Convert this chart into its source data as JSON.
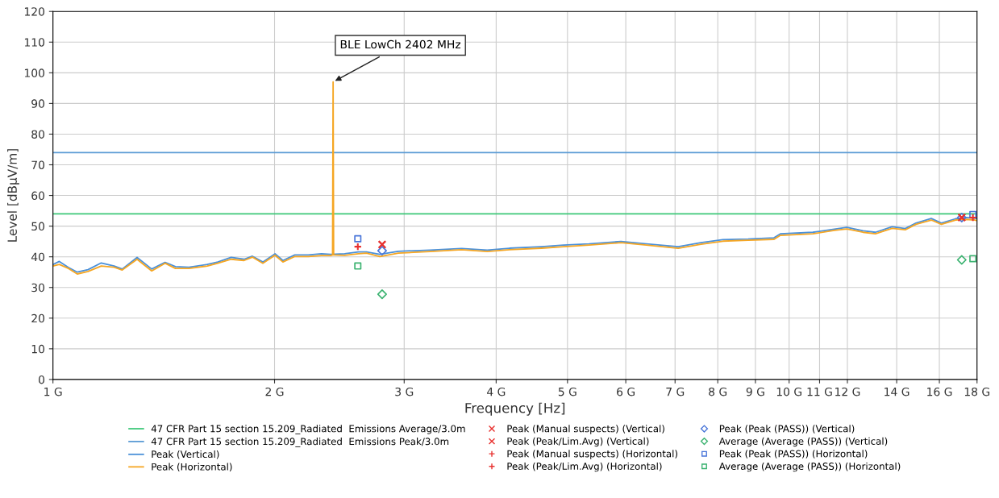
{
  "chart_data": {
    "type": "line",
    "xlabel": "Frequency [Hz]",
    "ylabel": "Level [dBµV/m]",
    "log": "x",
    "grid": true,
    "legend": "bottom",
    "xlim": [
      1,
      18
    ],
    "ylim": [
      0,
      120
    ],
    "xticks": [
      {
        "value": 1,
        "label": "1 G"
      },
      {
        "value": 2,
        "label": "2 G"
      },
      {
        "value": 3,
        "label": "3 G"
      },
      {
        "value": 4,
        "label": "4 G"
      },
      {
        "value": 5,
        "label": "5 G"
      },
      {
        "value": 6,
        "label": "6 G"
      },
      {
        "value": 7,
        "label": "7 G"
      },
      {
        "value": 8,
        "label": "8 G"
      },
      {
        "value": 9,
        "label": "9 G"
      },
      {
        "value": 10,
        "label": "10 G"
      },
      {
        "value": 11,
        "label": "11 G"
      },
      {
        "value": 12,
        "label": "12 G"
      },
      {
        "value": 14,
        "label": "14 G"
      },
      {
        "value": 16,
        "label": "16 G"
      },
      {
        "value": 18,
        "label": "18 G"
      }
    ],
    "yticks": [
      0,
      10,
      20,
      30,
      40,
      50,
      60,
      70,
      80,
      90,
      100,
      110,
      120
    ],
    "annotations": [
      {
        "text": "BLE LowCh 2402 MHz",
        "x": 2.402,
        "y": 97
      }
    ],
    "series": [
      {
        "name": "47 CFR Part 15 section 15.209_Radiated  Emissions Average/3.0m",
        "color": "#3cc878",
        "x": [
          1,
          18
        ],
        "values": [
          54,
          54
        ]
      },
      {
        "name": "47 CFR Part 15 section 15.209_Radiated  Emissions Peak/3.0m",
        "color": "#5b9bd5",
        "x": [
          1,
          18
        ],
        "values": [
          74,
          74
        ]
      },
      {
        "name": "Peak (Vertical)",
        "color": "#4a90d9",
        "x": [
          1.0,
          1.02,
          1.05,
          1.079,
          1.116,
          1.163,
          1.211,
          1.242,
          1.301,
          1.362,
          1.42,
          1.467,
          1.53,
          1.621,
          1.675,
          1.746,
          1.818,
          1.866,
          1.928,
          2.003,
          2.053,
          2.131,
          2.223,
          2.316,
          2.384,
          2.49,
          2.6,
          2.666,
          2.78,
          2.945,
          3.254,
          3.59,
          3.89,
          4.17,
          4.61,
          4.94,
          5.35,
          5.91,
          6.4,
          7.07,
          7.59,
          8.13,
          8.8,
          9.54,
          9.73,
          10.77,
          11.52,
          11.98,
          12.6,
          13.1,
          13.8,
          14.38,
          14.87,
          15.6,
          16.1,
          16.83,
          17.37,
          17.88,
          18
        ],
        "values": [
          37.5,
          38.5,
          36.5,
          35,
          35.8,
          38,
          37,
          36,
          39.8,
          36,
          38.2,
          36.8,
          36.6,
          37.5,
          38.3,
          39.8,
          39.2,
          40.2,
          38.3,
          41,
          38.8,
          40.6,
          40.6,
          41,
          40.8,
          41,
          41.6,
          41.6,
          40.8,
          41.8,
          42.2,
          42.7,
          42.2,
          42.8,
          43.3,
          43.8,
          44.2,
          45,
          44.2,
          43.3,
          44.6,
          45.6,
          45.8,
          46.2,
          47.5,
          48,
          49,
          49.6,
          48.5,
          48,
          49.8,
          49.2,
          51,
          52.5,
          51,
          52.4,
          52.8,
          52.6,
          52.4
        ]
      },
      {
        "name": "Peak (Horizontal)",
        "color": "#f5a623",
        "x": [
          1.0,
          1.02,
          1.05,
          1.079,
          1.116,
          1.163,
          1.211,
          1.242,
          1.301,
          1.362,
          1.42,
          1.467,
          1.53,
          1.621,
          1.675,
          1.746,
          1.818,
          1.866,
          1.928,
          2.003,
          2.053,
          2.131,
          2.223,
          2.316,
          2.384,
          2.398,
          2.402,
          2.406,
          2.49,
          2.6,
          2.666,
          2.78,
          2.945,
          3.254,
          3.59,
          3.89,
          4.17,
          4.61,
          4.94,
          5.35,
          5.91,
          6.4,
          7.07,
          7.59,
          8.13,
          8.8,
          9.54,
          9.73,
          10.77,
          11.52,
          11.98,
          12.6,
          13.1,
          13.8,
          14.38,
          14.87,
          15.6,
          16.1,
          16.83,
          17.37,
          17.88,
          18
        ],
        "values": [
          37,
          37.5,
          36.2,
          34.4,
          35.2,
          37,
          36.6,
          35.7,
          39.2,
          35.4,
          37.9,
          36.2,
          36.2,
          37,
          37.9,
          39.2,
          38.8,
          39.9,
          37.9,
          40.5,
          38.3,
          40.1,
          40.1,
          40.4,
          40.4,
          40.6,
          97,
          40.6,
          40.5,
          41,
          41.2,
          40.1,
          41.2,
          41.7,
          42.3,
          41.7,
          42.3,
          42.8,
          43.3,
          43.8,
          44.6,
          43.8,
          42.8,
          44.1,
          45.1,
          45.4,
          45.7,
          47,
          47.5,
          48.6,
          49.1,
          48,
          47.5,
          49.3,
          48.8,
          50.6,
          52,
          50.6,
          52,
          52.2,
          52,
          51.8
        ]
      },
      {
        "name": "Peak (Manual suspects) (Vertical)",
        "type": "scatter",
        "marker": "cross",
        "color": "#e8312f",
        "x": [
          2.8,
          17.16
        ],
        "values": [
          44,
          52.8
        ]
      },
      {
        "name": "Peak (Peak/Lim.Avg) (Vertical)",
        "type": "scatter",
        "marker": "cross",
        "color": "#e8312f",
        "x": [
          2.8,
          17.16
        ],
        "values": [
          44,
          52.8
        ]
      },
      {
        "name": "Peak (Manual suspects) (Horizontal)",
        "type": "scatter",
        "marker": "plus",
        "color": "#e8312f"
      },
      {
        "name": "Peak (Peak/Lim.Avg) (Horizontal)",
        "type": "scatter",
        "marker": "plus",
        "color": "#e8312f",
        "x": [
          2.595,
          17.77
        ],
        "values": [
          43.3,
          52.8
        ]
      },
      {
        "name": "Peak (Peak (PASS)) (Vertical)",
        "type": "scatter",
        "marker": "diamond",
        "color": "#4a76d9",
        "x": [
          2.8,
          17.16
        ],
        "values": [
          42,
          52.8
        ]
      },
      {
        "name": "Average (Average (PASS)) (Vertical)",
        "type": "scatter",
        "marker": "diamond",
        "color": "#3cb371",
        "x": [
          2.8,
          17.16
        ],
        "values": [
          27.8,
          39
        ]
      },
      {
        "name": "Peak (Peak (PASS)) (Horizontal)",
        "type": "scatter",
        "marker": "square",
        "color": "#4a76d9",
        "x": [
          2.595,
          17.77
        ],
        "values": [
          45.9,
          53.8
        ]
      },
      {
        "name": "Average (Average (PASS)) (Horizontal)",
        "type": "scatter",
        "marker": "square",
        "color": "#3cb371",
        "x": [
          2.595,
          17.77
        ],
        "values": [
          37,
          39.4
        ]
      }
    ]
  }
}
